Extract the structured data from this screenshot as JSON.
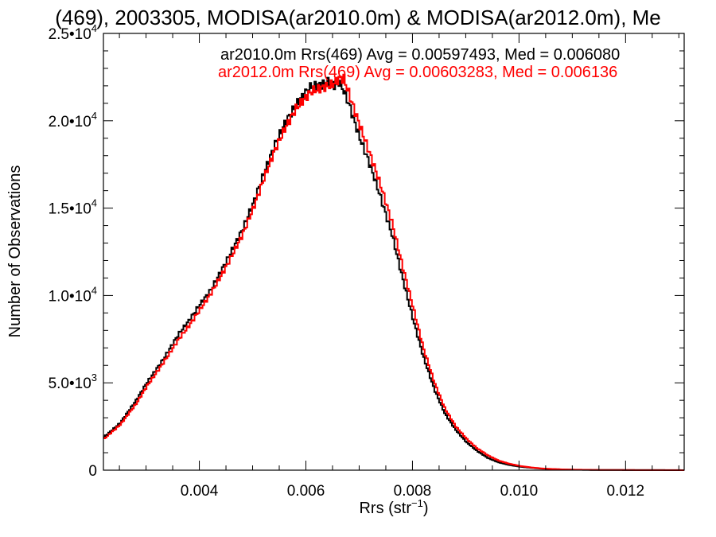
{
  "title": "(469), 2003305, MODISA(ar2010.0m) & MODISA(ar2012.0m), Me",
  "chart_data": {
    "type": "line",
    "title": "(469), 2003305, MODISA(ar2010.0m) & MODISA(ar2012.0m), Me",
    "xlabel": "Rrs (str⁻¹)",
    "ylabel": "Number of Observations",
    "xlim": [
      0.0022,
      0.0131
    ],
    "ylim": [
      0,
      25000
    ],
    "x_ticks": [
      0.004,
      0.006,
      0.008,
      0.01,
      0.012
    ],
    "x_tick_labels": [
      "0.004",
      "0.006",
      "0.008",
      "0.010",
      "0.012"
    ],
    "y_ticks": [
      0,
      5000,
      10000,
      15000,
      20000,
      25000
    ],
    "y_tick_labels": [
      {
        "mantissa": "0",
        "exponent": ""
      },
      {
        "mantissa": "5.0•10",
        "exponent": "3"
      },
      {
        "mantissa": "1.0•10",
        "exponent": "4"
      },
      {
        "mantissa": "1.5•10",
        "exponent": "4"
      },
      {
        "mantissa": "2.0•10",
        "exponent": "4"
      },
      {
        "mantissa": "2.5•10",
        "exponent": "4"
      }
    ],
    "grid": false,
    "legend": [
      {
        "text": "ar2010.0m Rrs(469) Avg = 0.00597493, Med = 0.006080",
        "color": "#000000"
      },
      {
        "text": "ar2012.0m Rrs(469) Avg = 0.00603283, Med = 0.006136",
        "color": "#ff0000"
      }
    ],
    "series": [
      {
        "color": "#000000",
        "x": [
          0.0022,
          0.0025,
          0.0028,
          0.003,
          0.0033,
          0.0036,
          0.0038,
          0.004,
          0.0042,
          0.0045,
          0.0048,
          0.005,
          0.0052,
          0.0054,
          0.0056,
          0.0058,
          0.006,
          0.0061,
          0.0062,
          0.0063,
          0.0064,
          0.0065,
          0.0066,
          0.0067,
          0.0068,
          0.007,
          0.0072,
          0.0074,
          0.0076,
          0.0078,
          0.008,
          0.0082,
          0.0084,
          0.0086,
          0.0088,
          0.009,
          0.0092,
          0.0094,
          0.0096,
          0.0098,
          0.01,
          0.0102,
          0.0104,
          0.0106,
          0.0108,
          0.011,
          0.0115,
          0.012,
          0.0125,
          0.0131
        ],
        "y": [
          1900,
          2700,
          4000,
          5000,
          6300,
          7800,
          8600,
          9500,
          10300,
          12000,
          13800,
          15300,
          17000,
          18600,
          19900,
          20900,
          21700,
          22000,
          22000,
          22100,
          22200,
          22000,
          22300,
          21700,
          20900,
          19000,
          17400,
          15500,
          13500,
          11000,
          8600,
          6400,
          4600,
          3200,
          2300,
          1600,
          1100,
          700,
          450,
          300,
          200,
          140,
          90,
          60,
          40,
          25,
          12,
          6,
          3,
          1
        ]
      },
      {
        "color": "#ff0000",
        "x": [
          0.0022,
          0.0025,
          0.0028,
          0.003,
          0.0033,
          0.0036,
          0.0038,
          0.004,
          0.0042,
          0.0045,
          0.0048,
          0.005,
          0.0052,
          0.0054,
          0.0056,
          0.0058,
          0.006,
          0.0061,
          0.0062,
          0.0063,
          0.0064,
          0.0065,
          0.0066,
          0.0067,
          0.0068,
          0.007,
          0.0072,
          0.0074,
          0.0076,
          0.0078,
          0.008,
          0.0082,
          0.0084,
          0.0086,
          0.0088,
          0.009,
          0.0092,
          0.0094,
          0.0096,
          0.0098,
          0.01,
          0.0102,
          0.0104,
          0.0106,
          0.0108,
          0.011,
          0.0115,
          0.012,
          0.0125,
          0.0131
        ],
        "y": [
          1800,
          2600,
          3800,
          4800,
          6100,
          7500,
          8300,
          9200,
          10100,
          11700,
          13500,
          15000,
          16700,
          18300,
          19600,
          20700,
          21400,
          21700,
          21800,
          21900,
          22000,
          22100,
          22400,
          22400,
          21500,
          19700,
          18000,
          16200,
          14200,
          11700,
          9300,
          6900,
          5000,
          3500,
          2500,
          1800,
          1250,
          850,
          550,
          370,
          240,
          160,
          100,
          70,
          45,
          30,
          15,
          8,
          4,
          2
        ]
      }
    ]
  }
}
